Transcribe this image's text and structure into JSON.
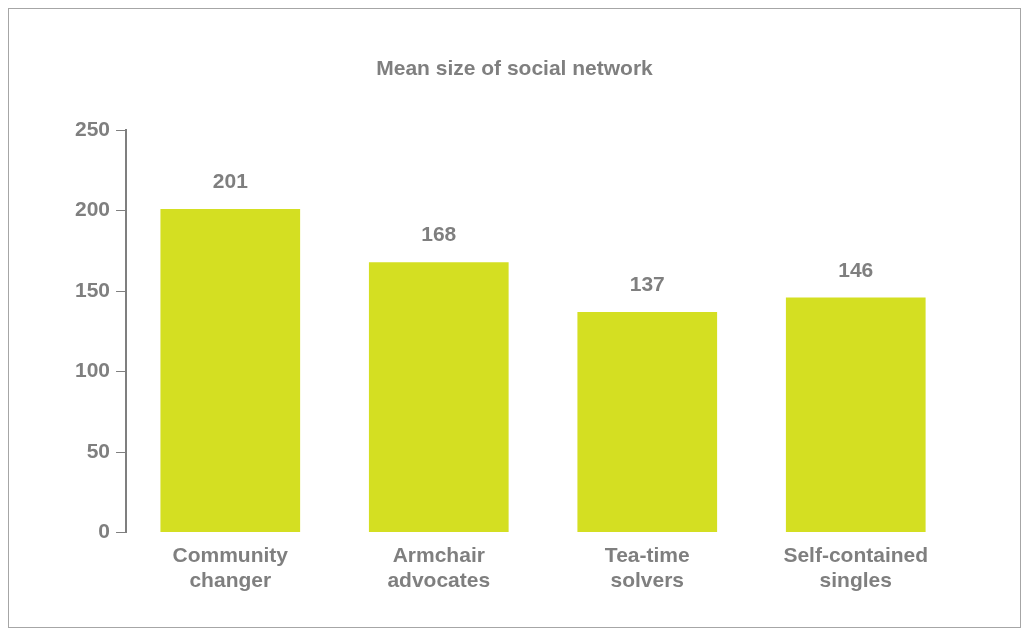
{
  "chart_data": {
    "type": "bar",
    "title": "Mean size of social network",
    "categories": [
      "Community changer",
      "Armchair advocates",
      "Tea-time solvers",
      "Self-contained singles"
    ],
    "values": [
      201,
      168,
      137,
      146
    ],
    "color": "#d4df22",
    "ylim": [
      0,
      250
    ],
    "yticks": [
      0,
      50,
      100,
      150,
      200,
      250
    ],
    "grid": false,
    "legend": false,
    "data_labels": true
  }
}
